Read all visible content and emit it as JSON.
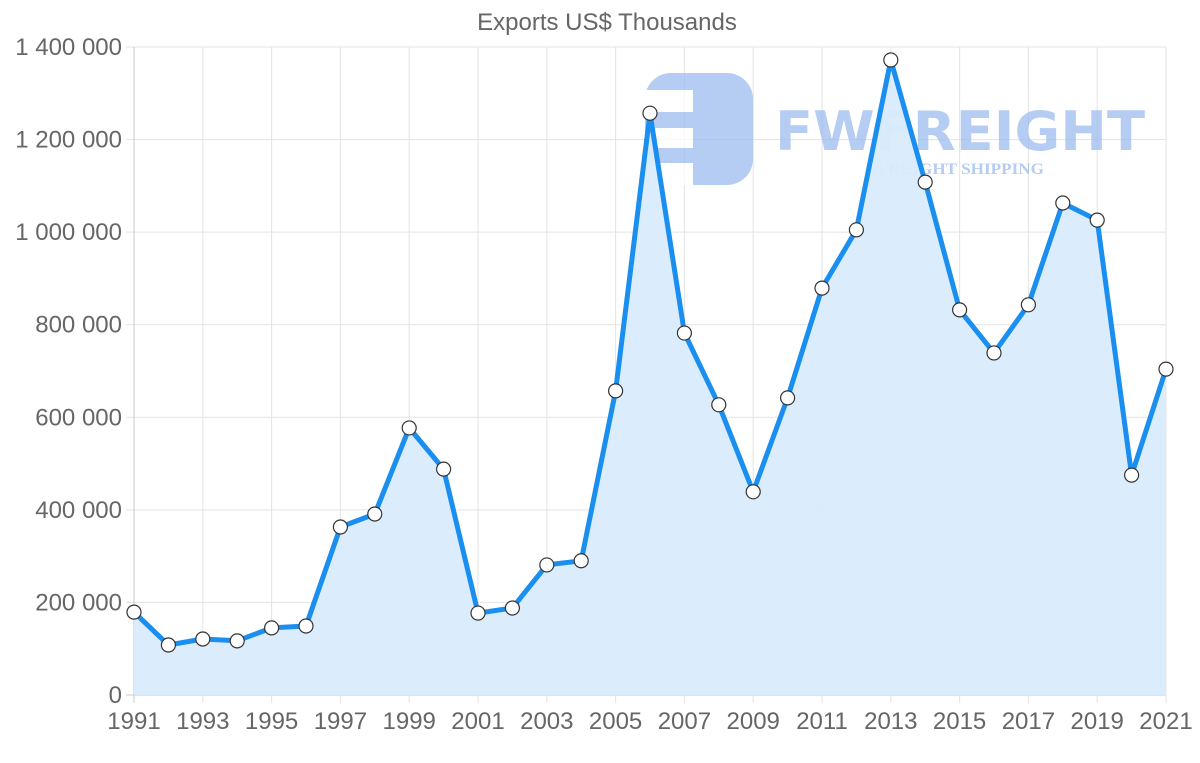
{
  "chart_data": {
    "type": "line",
    "title": "Exports US$ Thousands",
    "xlabel": "",
    "ylabel": "",
    "x": [
      1991,
      1992,
      1993,
      1994,
      1995,
      1996,
      1997,
      1998,
      1999,
      2000,
      2001,
      2002,
      2003,
      2004,
      2005,
      2006,
      2007,
      2008,
      2009,
      2010,
      2011,
      2012,
      2013,
      2014,
      2015,
      2016,
      2017,
      2018,
      2019,
      2020,
      2021
    ],
    "series": [
      {
        "name": "Exports US$ Thousands",
        "values": [
          179000,
          108000,
          121000,
          117000,
          145000,
          149000,
          363000,
          391000,
          577000,
          488000,
          177000,
          188000,
          281000,
          290000,
          657000,
          1257000,
          782000,
          627000,
          439000,
          642000,
          879000,
          1005000,
          1372000,
          1108000,
          832000,
          739000,
          843000,
          1063000,
          1026000,
          475000,
          704000
        ]
      }
    ],
    "ylim": [
      0,
      1400000
    ],
    "xlim": [
      1991,
      2021
    ],
    "y_ticks": [
      0,
      200000,
      400000,
      600000,
      800000,
      1000000,
      1200000,
      1400000
    ],
    "y_tick_labels": [
      "0",
      "200 000",
      "400 000",
      "600 000",
      "800 000",
      "1 000 000",
      "1 200 000",
      "1 400 000"
    ],
    "x_tick_labels": [
      "1991",
      "1993",
      "1995",
      "1997",
      "1999",
      "2001",
      "2003",
      "2005",
      "2007",
      "2009",
      "2011",
      "2013",
      "2015",
      "2017",
      "2019",
      "2021"
    ],
    "grid": true,
    "fill": "area under line",
    "legend": null
  },
  "colors": {
    "line": "#1b8ff0",
    "fill": "#d9ecfd",
    "point_fill": "#ffffff",
    "point_stroke": "#333333",
    "text": "#666666",
    "grid": "#e3e3e3",
    "watermark": "#9dbcf0"
  },
  "watermark": {
    "brand": "FWFREIGHT",
    "tagline": "FREIGHT SHIPPING",
    "logo_icon": "fwfreight-logo-icon"
  }
}
